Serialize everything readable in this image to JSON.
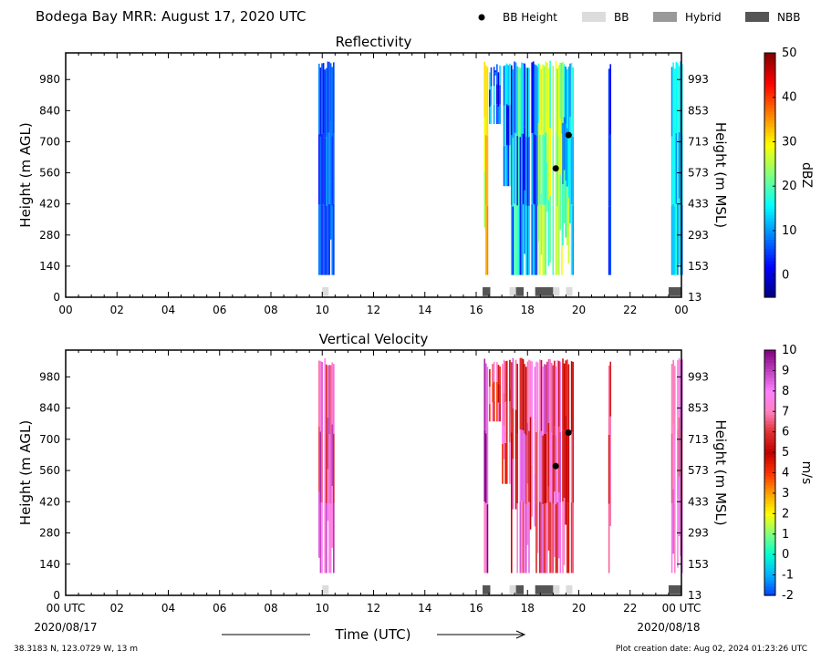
{
  "header": {
    "title": "Bodega Bay MRR:  August 17, 2020 UTC",
    "legend": [
      {
        "label": "BB Height",
        "kind": "dot",
        "color": "#000000"
      },
      {
        "label": "BB",
        "kind": "box",
        "color": "#dcdcdc"
      },
      {
        "label": "Hybrid",
        "kind": "box",
        "color": "#999999"
      },
      {
        "label": "NBB",
        "kind": "box",
        "color": "#555555"
      }
    ]
  },
  "footer": {
    "location": "38.3183 N, 123.0729 W, 13 m",
    "creation": "Plot creation date: Aug 02, 2024 01:23:26 UTC",
    "xlabel": "Time (UTC)",
    "start_date": "2020/08/17",
    "end_date": "2020/08/18"
  },
  "chart_data": [
    {
      "type": "heatmap",
      "title": "Reflectivity",
      "ylabel": "Height (m AGL)",
      "y2label": "Height (m MSL)",
      "colorbar_label": "dBZ",
      "colorbar_range": [
        -5,
        50
      ],
      "colorbar_ticks": [
        "0",
        "10",
        "20",
        "30",
        "40",
        "50"
      ],
      "colorbar_tick_values": [
        0,
        10,
        20,
        30,
        40,
        50
      ],
      "colormap": [
        "#000080",
        "#0000ff",
        "#0080ff",
        "#00ffff",
        "#80ff80",
        "#ffff00",
        "#ff8000",
        "#ff0000",
        "#800000"
      ],
      "x_ticks": [
        "00",
        "02",
        "04",
        "06",
        "08",
        "10",
        "12",
        "14",
        "16",
        "18",
        "20",
        "22",
        "00"
      ],
      "xlim": [
        0,
        24
      ],
      "ylim": [
        0,
        1100
      ],
      "y_ticks_left": [
        "0",
        "140",
        "280",
        "420",
        "560",
        "700",
        "840",
        "980"
      ],
      "y_ticks_right": [
        "13",
        "153",
        "293",
        "433",
        "573",
        "713",
        "853",
        "993"
      ],
      "precip_bands": [
        {
          "t0": 9.85,
          "t1": 10.45,
          "top": 1065,
          "bottom": 100,
          "seed": 1,
          "base": 6,
          "spread": 4
        },
        {
          "t0": 16.3,
          "t1": 16.45,
          "top": 1065,
          "bottom": 100,
          "seed": 2,
          "base": 30,
          "spread": 8
        },
        {
          "t0": 16.5,
          "t1": 17.0,
          "top": 1050,
          "bottom": 780,
          "seed": 3,
          "base": 8,
          "spread": 10
        },
        {
          "t0": 17.0,
          "t1": 17.35,
          "top": 1065,
          "bottom": 500,
          "seed": 4,
          "base": 10,
          "spread": 10
        },
        {
          "t0": 17.35,
          "t1": 18.4,
          "top": 1065,
          "bottom": 100,
          "seed": 5,
          "base": 12,
          "spread": 12
        },
        {
          "t0": 18.4,
          "t1": 19.35,
          "top": 1065,
          "bottom": 100,
          "seed": 6,
          "base": 24,
          "spread": 6
        },
        {
          "t0": 19.35,
          "t1": 19.75,
          "top": 1065,
          "bottom": 100,
          "seed": 7,
          "base": 17,
          "spread": 10
        },
        {
          "t0": 21.15,
          "t1": 21.25,
          "top": 1065,
          "bottom": 100,
          "seed": 8,
          "base": 4,
          "spread": 3
        },
        {
          "t0": 23.6,
          "t1": 24.0,
          "top": 1065,
          "bottom": 100,
          "seed": 9,
          "base": 13,
          "spread": 5
        }
      ],
      "bb_points": [
        {
          "t": 19.1,
          "h": 580
        },
        {
          "t": 19.6,
          "h": 730
        }
      ],
      "bb_segments": [
        {
          "t0": 10.0,
          "t1": 10.25,
          "class": "BB"
        },
        {
          "t0": 16.25,
          "t1": 16.55,
          "class": "NBB"
        },
        {
          "t0": 17.3,
          "t1": 17.55,
          "class": "BB"
        },
        {
          "t0": 17.55,
          "t1": 17.85,
          "class": "NBB"
        },
        {
          "t0": 18.3,
          "t1": 19.0,
          "class": "NBB"
        },
        {
          "t0": 19.0,
          "t1": 19.25,
          "class": "BB"
        },
        {
          "t0": 19.5,
          "t1": 19.75,
          "class": "BB"
        },
        {
          "t0": 23.5,
          "t1": 24.0,
          "class": "NBB"
        }
      ]
    },
    {
      "type": "heatmap",
      "title": "Vertical Velocity",
      "ylabel": "Height (m AGL)",
      "y2label": "Height (m MSL)",
      "colorbar_label": "m/s",
      "colorbar_range": [
        -2,
        10
      ],
      "colorbar_ticks": [
        "-2",
        "-1",
        "0",
        "1",
        "2",
        "3",
        "4",
        "5",
        "6",
        "7",
        "8",
        "9",
        "10"
      ],
      "colorbar_tick_values": [
        -2,
        -1,
        0,
        1,
        2,
        3,
        4,
        5,
        6,
        7,
        8,
        9,
        10
      ],
      "colormap": [
        "#0040ff",
        "#00b0ff",
        "#00ffd0",
        "#80ff80",
        "#ffff00",
        "#ffa000",
        "#ff3000",
        "#c00000",
        "#e03030",
        "#ff80c0",
        "#ff80ff",
        "#c040c0",
        "#800080"
      ],
      "x_ticks": [
        "00 UTC",
        "02",
        "04",
        "06",
        "08",
        "10",
        "12",
        "14",
        "16",
        "18",
        "20",
        "22",
        "00 UTC"
      ],
      "xlim": [
        0,
        24
      ],
      "ylim": [
        0,
        1100
      ],
      "y_ticks_left": [
        "0",
        "140",
        "280",
        "420",
        "560",
        "700",
        "840",
        "980"
      ],
      "y_ticks_right": [
        "13",
        "153",
        "293",
        "433",
        "573",
        "713",
        "853",
        "993"
      ],
      "precip_bands": [
        {
          "t0": 9.85,
          "t1": 10.45,
          "top": 1065,
          "bottom": 100,
          "seed": 11,
          "base": 7.5,
          "spread": 2
        },
        {
          "t0": 16.3,
          "t1": 16.45,
          "top": 1065,
          "bottom": 100,
          "seed": 12,
          "base": 8.5,
          "spread": 2
        },
        {
          "t0": 16.5,
          "t1": 17.0,
          "top": 1050,
          "bottom": 780,
          "seed": 13,
          "base": 5.5,
          "spread": 2
        },
        {
          "t0": 17.0,
          "t1": 17.35,
          "top": 1065,
          "bottom": 500,
          "seed": 14,
          "base": 6,
          "spread": 2
        },
        {
          "t0": 17.35,
          "t1": 18.4,
          "top": 1065,
          "bottom": 100,
          "seed": 15,
          "base": 6.8,
          "spread": 2
        },
        {
          "t0": 18.4,
          "t1": 19.35,
          "top": 1065,
          "bottom": 100,
          "seed": 16,
          "base": 7,
          "spread": 2
        },
        {
          "t0": 19.35,
          "t1": 19.75,
          "top": 1065,
          "bottom": 100,
          "seed": 17,
          "base": 5.8,
          "spread": 1.5
        },
        {
          "t0": 21.15,
          "t1": 21.25,
          "top": 1065,
          "bottom": 100,
          "seed": 18,
          "base": 6,
          "spread": 1
        },
        {
          "t0": 23.6,
          "t1": 24.0,
          "top": 1065,
          "bottom": 100,
          "seed": 19,
          "base": 7.2,
          "spread": 1.5
        }
      ],
      "bb_points": [
        {
          "t": 19.1,
          "h": 580
        },
        {
          "t": 19.6,
          "h": 730
        }
      ],
      "bb_segments": [
        {
          "t0": 10.0,
          "t1": 10.25,
          "class": "BB"
        },
        {
          "t0": 16.25,
          "t1": 16.55,
          "class": "NBB"
        },
        {
          "t0": 17.3,
          "t1": 17.55,
          "class": "BB"
        },
        {
          "t0": 17.55,
          "t1": 17.85,
          "class": "NBB"
        },
        {
          "t0": 18.3,
          "t1": 19.0,
          "class": "NBB"
        },
        {
          "t0": 19.0,
          "t1": 19.25,
          "class": "BB"
        },
        {
          "t0": 19.5,
          "t1": 19.75,
          "class": "BB"
        },
        {
          "t0": 23.5,
          "t1": 24.0,
          "class": "NBB"
        }
      ]
    }
  ]
}
